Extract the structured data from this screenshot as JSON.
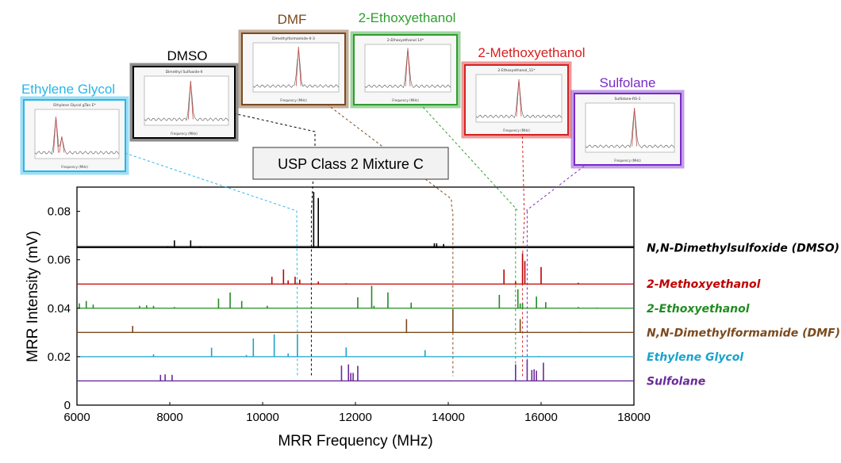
{
  "chart_data": {
    "type": "line",
    "title": "USP Class 2 Mixture C",
    "xlabel": "MRR Frequency (MHz)",
    "ylabel": "MRR Intensity (mV)",
    "xlim": [
      6000,
      18000
    ],
    "ylim": [
      0,
      0.09
    ],
    "x_ticks": [
      6000,
      8000,
      10000,
      12000,
      14000,
      16000,
      18000
    ],
    "x_tick_labels": [
      "6000",
      "8000",
      "10000",
      "12000",
      "14000",
      "16000",
      "18000"
    ],
    "y_ticks": [
      0,
      0.02,
      0.04,
      0.06,
      0.08
    ],
    "y_tick_labels": [
      "0",
      "0.02",
      "0.04",
      "0.06",
      "0.08"
    ],
    "series": [
      {
        "name": "N,N-Dimethylsulfoxide (DMSO)",
        "color": "#000000",
        "baseline": 0.065,
        "peaks": [
          [
            7950,
            0.0655
          ],
          [
            8100,
            0.068
          ],
          [
            8450,
            0.068
          ],
          [
            8650,
            0.0655
          ],
          [
            11100,
            0.088
          ],
          [
            11200,
            0.0855
          ],
          [
            13700,
            0.0668
          ],
          [
            13750,
            0.0668
          ],
          [
            13900,
            0.0665
          ]
        ]
      },
      {
        "name": "2-Methoxyethanol",
        "color": "#c00000",
        "baseline": 0.05,
        "peaks": [
          [
            10200,
            0.053
          ],
          [
            10450,
            0.056
          ],
          [
            10550,
            0.0515
          ],
          [
            10700,
            0.053
          ],
          [
            10800,
            0.0518
          ],
          [
            11200,
            0.051
          ],
          [
            11800,
            0.0503
          ],
          [
            15200,
            0.056
          ],
          [
            15450,
            0.051
          ],
          [
            15600,
            0.0627
          ],
          [
            15650,
            0.0595
          ],
          [
            16000,
            0.057
          ],
          [
            16800,
            0.0505
          ]
        ]
      },
      {
        "name": "2-Ethoxyethanol",
        "color": "#228b22",
        "baseline": 0.04,
        "peaks": [
          [
            6050,
            0.042
          ],
          [
            6200,
            0.043
          ],
          [
            6350,
            0.0415
          ],
          [
            7350,
            0.041
          ],
          [
            7500,
            0.0412
          ],
          [
            7650,
            0.041
          ],
          [
            8100,
            0.0405
          ],
          [
            9050,
            0.044
          ],
          [
            9300,
            0.0465
          ],
          [
            9550,
            0.043
          ],
          [
            10100,
            0.041
          ],
          [
            11050,
            0.0407
          ],
          [
            12050,
            0.0445
          ],
          [
            12350,
            0.0493
          ],
          [
            12400,
            0.041
          ],
          [
            12700,
            0.0465
          ],
          [
            13200,
            0.0423
          ],
          [
            15100,
            0.0455
          ],
          [
            15500,
            0.0478
          ],
          [
            15550,
            0.042
          ],
          [
            15600,
            0.042
          ],
          [
            15900,
            0.0448
          ],
          [
            16100,
            0.0425
          ],
          [
            16800,
            0.0405
          ],
          [
            17200,
            0.0403
          ]
        ]
      },
      {
        "name": "N,N-Dimethylformamide  (DMF)",
        "color": "#7b4a1e",
        "baseline": 0.03,
        "peaks": [
          [
            7200,
            0.0327
          ],
          [
            13100,
            0.0355
          ],
          [
            14100,
            0.0395
          ],
          [
            15550,
            0.0355
          ],
          [
            16850,
            0.0302
          ]
        ]
      },
      {
        "name": "Ethylene Glycol",
        "color": "#1aa3cc",
        "baseline": 0.02,
        "peaks": [
          [
            7650,
            0.021
          ],
          [
            8900,
            0.0237
          ],
          [
            9650,
            0.0207
          ],
          [
            9800,
            0.0275
          ],
          [
            10250,
            0.0292
          ],
          [
            10550,
            0.0213
          ],
          [
            10750,
            0.0293
          ],
          [
            11800,
            0.0238
          ],
          [
            13500,
            0.0227
          ],
          [
            15950,
            0.0203
          ]
        ]
      },
      {
        "name": "Sulfolane",
        "color": "#6a2a9a",
        "baseline": 0.01,
        "peaks": [
          [
            7800,
            0.0125
          ],
          [
            7900,
            0.0127
          ],
          [
            8050,
            0.0125
          ],
          [
            11700,
            0.0163
          ],
          [
            11850,
            0.0168
          ],
          [
            11900,
            0.0133
          ],
          [
            11950,
            0.0133
          ],
          [
            12050,
            0.0162
          ],
          [
            15450,
            0.0168
          ],
          [
            15700,
            0.0187
          ],
          [
            15800,
            0.0145
          ],
          [
            15850,
            0.0148
          ],
          [
            15900,
            0.0142
          ],
          [
            16050,
            0.0175
          ]
        ]
      }
    ],
    "insets": [
      {
        "label": "Ethylene Glycol",
        "color": "#29b6e8",
        "caption": "Ethylene Glycol gTan E*",
        "target_x": 10750,
        "target_y": 0.029
      },
      {
        "label": "DMSO",
        "color": "#000000",
        "caption": "Dimethyl Sulfoxide-II",
        "target_x": 11050,
        "target_y": 0.08
      },
      {
        "label": "DMF",
        "color": "#7b4a1e",
        "caption": "Dimethylformamide-II-3",
        "target_x": 14100,
        "target_y": 0.079
      },
      {
        "label": "2-Ethoxyethanol",
        "color": "#2e9e2e",
        "caption": "2-Ethoxyethanol 14*",
        "target_x": 15450,
        "target_y": 0.081
      },
      {
        "label": "2-Methoxyethanol",
        "color": "#d62020",
        "caption": "2-Ethoxyethanol_11*",
        "target_x": 15600,
        "target_y": 0.062
      },
      {
        "label": "Sulfolane",
        "color": "#7a2bc8",
        "caption": "Sulfolane-RS-1",
        "target_x": 15700,
        "target_y": 0.08
      }
    ]
  }
}
